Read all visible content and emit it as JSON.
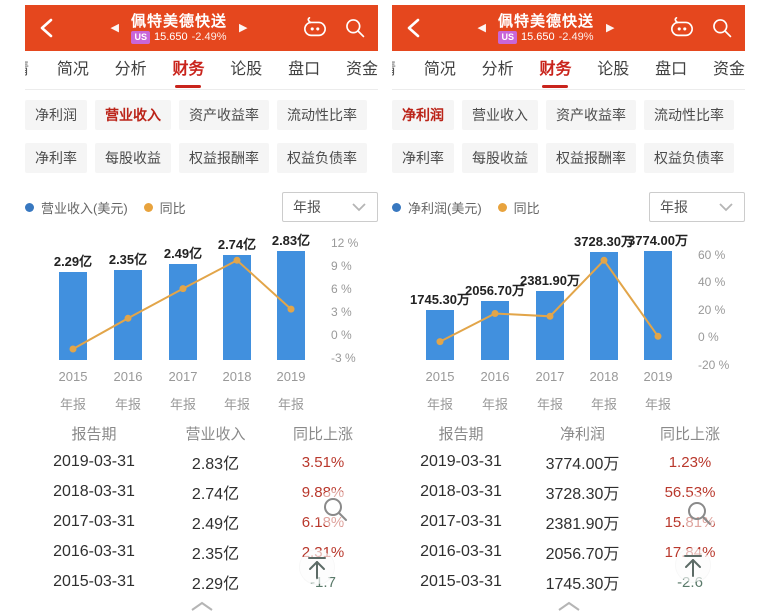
{
  "header": {
    "title": "佩特美德快送",
    "market_badge": "US",
    "price": "15.650",
    "change": "-2.49%"
  },
  "tabs": {
    "edge_sliver": "情",
    "items": [
      "简况",
      "分析",
      "财务",
      "论股",
      "盘口",
      "资金"
    ],
    "active": "财务"
  },
  "icons": {
    "back": "chevron-left",
    "prev": "◀",
    "next": "▶",
    "assistant": "robot-face",
    "search": "magnifier",
    "dropdown": "chevron-down",
    "collapse": "chevron-up",
    "zoom_watermark": "magnifier",
    "back_to_top": "arrow-up-to-bar"
  },
  "colors": {
    "header_bg": "#E5471E",
    "active_tab": "#C9241C",
    "selected_chip": "#BB2419",
    "bar": "#4190DE",
    "line": "#E2A549",
    "pct_up": "#B9382C",
    "pct_down": "#5A7A6A",
    "badge": "#C966D8"
  },
  "panels": [
    {
      "chips": {
        "rows": [
          [
            "净利润",
            "营业收入",
            "资产收益率",
            "流动性比率"
          ],
          [
            "净利率",
            "每股收益",
            "权益报酬率",
            "权益负债率"
          ]
        ],
        "selected": "营业收入"
      },
      "legend": {
        "series1": "营业收入(美元)",
        "series2": "同比",
        "period": "年报"
      },
      "table": {
        "headers": [
          "报告期",
          "营业收入",
          "同比上涨"
        ],
        "rows": [
          {
            "date": "2019-03-31",
            "value": "2.83亿",
            "pct": "3.51%"
          },
          {
            "date": "2018-03-31",
            "value": "2.74亿",
            "pct": "9.88%"
          },
          {
            "date": "2017-03-31",
            "value": "2.49亿",
            "pct": "6.18%"
          },
          {
            "date": "2016-03-31",
            "value": "2.35亿",
            "pct": "2.31%"
          },
          {
            "date": "2015-03-31",
            "value": "2.29亿",
            "pct": "-1.7"
          }
        ]
      }
    },
    {
      "chips": {
        "rows": [
          [
            "净利润",
            "营业收入",
            "资产收益率",
            "流动性比率"
          ],
          [
            "净利率",
            "每股收益",
            "权益报酬率",
            "权益负债率"
          ]
        ],
        "selected": "净利润"
      },
      "legend": {
        "series1": "净利润(美元)",
        "series2": "同比",
        "period": "年报"
      },
      "table": {
        "headers": [
          "报告期",
          "净利润",
          "同比上涨"
        ],
        "rows": [
          {
            "date": "2019-03-31",
            "value": "3774.00万",
            "pct": "1.23%"
          },
          {
            "date": "2018-03-31",
            "value": "3728.30万",
            "pct": "56.53%"
          },
          {
            "date": "2017-03-31",
            "value": "2381.90万",
            "pct": "15.81%"
          },
          {
            "date": "2016-03-31",
            "value": "2056.70万",
            "pct": "17.84%"
          },
          {
            "date": "2015-03-31",
            "value": "1745.30万",
            "pct": "-2.6"
          }
        ]
      }
    }
  ],
  "chart_data": [
    {
      "type": "bar",
      "subtype": "bar+line-combo",
      "title": "营业收入(美元) 年报",
      "categories": [
        "2015",
        "2016",
        "2017",
        "2018",
        "2019"
      ],
      "category_sublabel": "年报",
      "series": [
        {
          "name": "营业收入(美元)",
          "type": "bar",
          "unit": "亿",
          "values": [
            2.29,
            2.35,
            2.49,
            2.74,
            2.83
          ],
          "labels": [
            "2.29亿",
            "2.35亿",
            "2.49亿",
            "2.74亿",
            "2.83亿"
          ],
          "color": "#4190DE"
        },
        {
          "name": "同比",
          "type": "line",
          "unit": "%",
          "values": [
            -1.7,
            2.31,
            6.18,
            9.88,
            3.51
          ],
          "color": "#E2A549"
        }
      ],
      "y2_axis": {
        "position": "right",
        "ticks": [
          12,
          9,
          6,
          3,
          0,
          -3
        ],
        "unit": "%"
      },
      "grid": false,
      "legend_position": "top-left"
    },
    {
      "type": "bar",
      "subtype": "bar+line-combo",
      "title": "净利润(美元) 年报",
      "categories": [
        "2015",
        "2016",
        "2017",
        "2018",
        "2019"
      ],
      "category_sublabel": "年报",
      "series": [
        {
          "name": "净利润(美元)",
          "type": "bar",
          "unit": "万",
          "values": [
            1745.3,
            2056.7,
            2381.9,
            3728.3,
            3774.0
          ],
          "labels": [
            "1745.30万",
            "2056.70万",
            "2381.90万",
            "3728.30万",
            "3774.00万"
          ],
          "color": "#4190DE"
        },
        {
          "name": "同比",
          "type": "line",
          "unit": "%",
          "values": [
            -2.6,
            17.84,
            15.81,
            56.53,
            1.23
          ],
          "color": "#E2A549"
        }
      ],
      "y2_axis": {
        "position": "right",
        "ticks": [
          60,
          40,
          20,
          0,
          -20
        ],
        "unit": "%"
      },
      "grid": false,
      "legend_position": "top-left"
    }
  ]
}
